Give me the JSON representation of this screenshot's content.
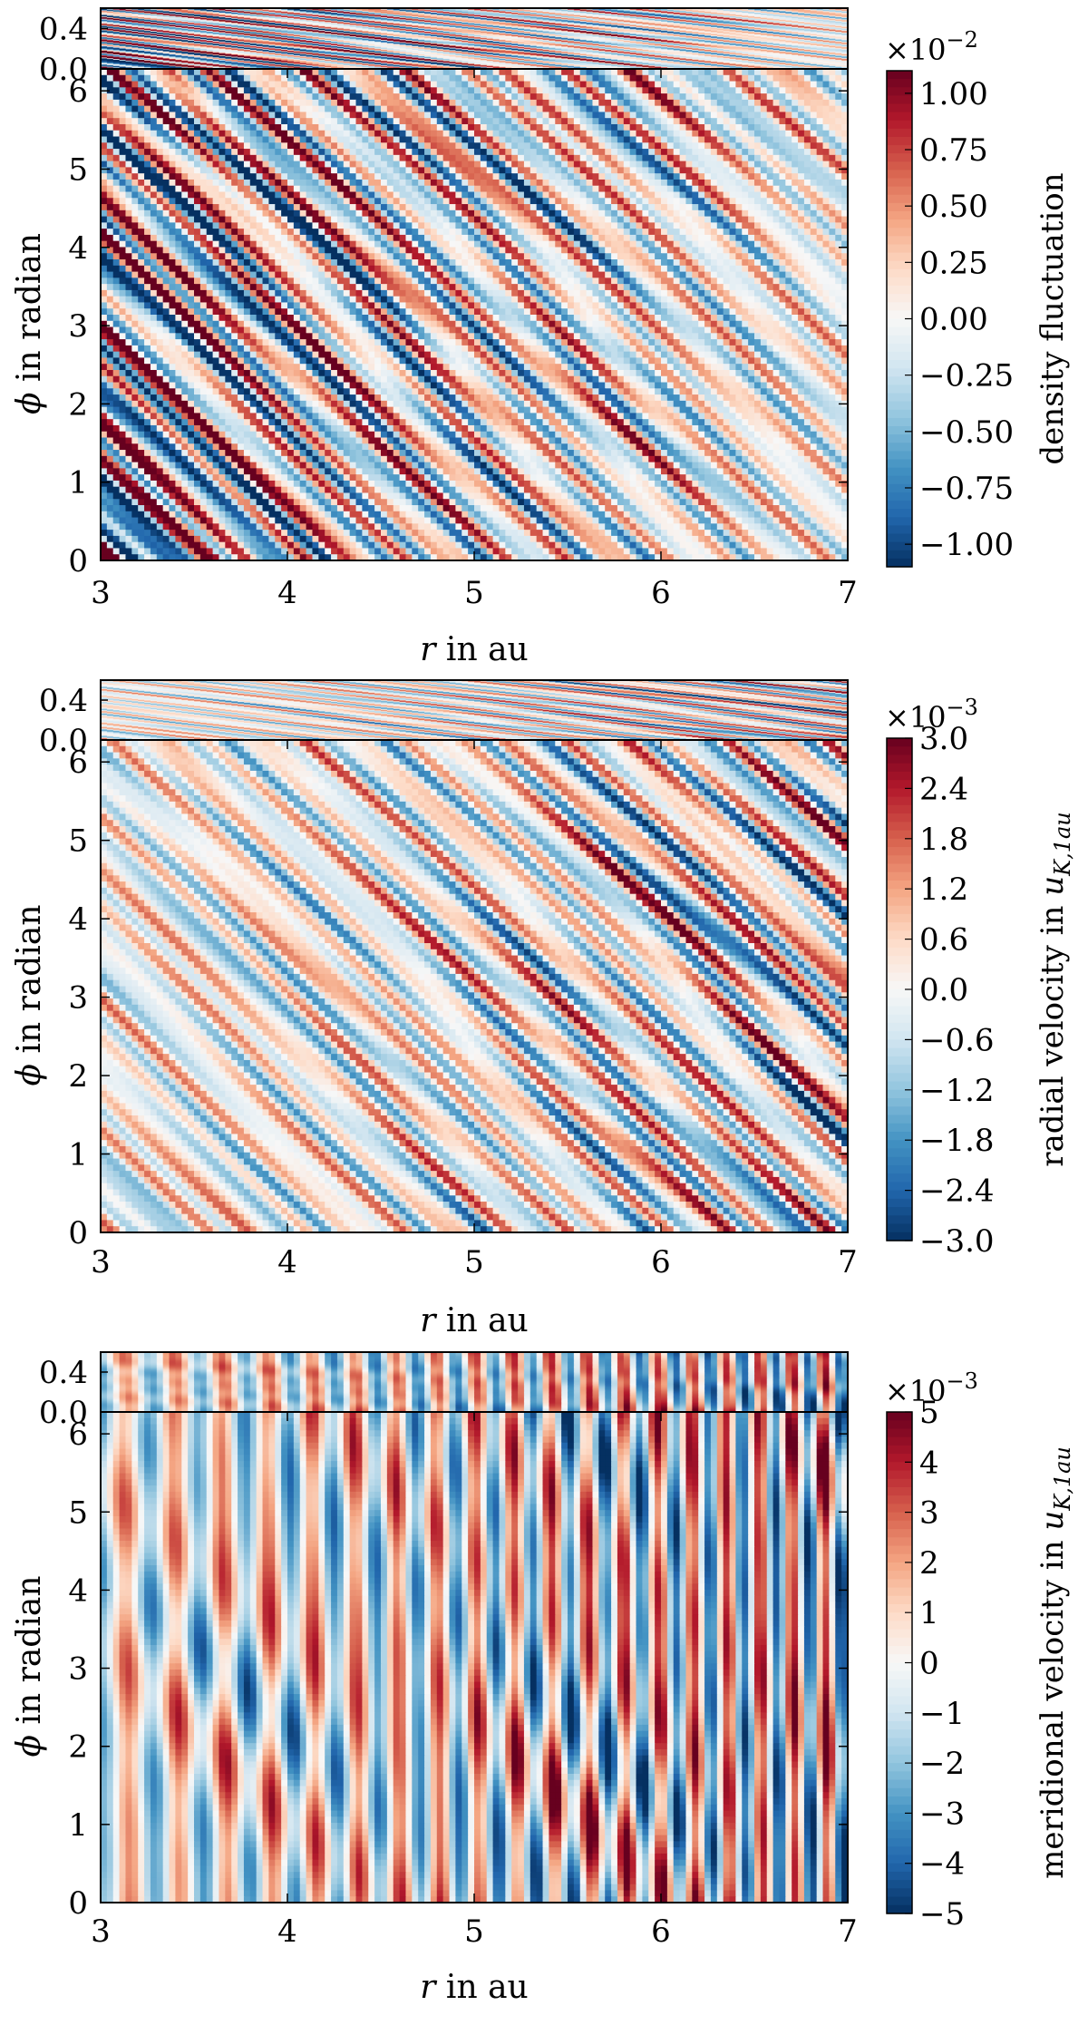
{
  "chart_data": [
    {
      "type": "heatmap",
      "title": "",
      "xlabel_var": "r",
      "xlabel_rest": " in au",
      "ylabel_var": "ϕ",
      "ylabel_rest": " in radian",
      "xlim": [
        3,
        7
      ],
      "x_ticks": [
        "3",
        "4",
        "5",
        "6",
        "7"
      ],
      "top_ylim": [
        0.0,
        0.6
      ],
      "top_y_ticks": [
        "0.0",
        "0.4"
      ],
      "main_ylim": [
        0,
        6.28
      ],
      "main_y_ticks": [
        "0",
        "1",
        "2",
        "3",
        "4",
        "5",
        "6"
      ],
      "colorbar": {
        "label": "density fluctuation",
        "label_sub": "",
        "multiplier_base": "×10",
        "multiplier_exp": "−2",
        "range": [
          -1.1,
          1.1
        ],
        "ticks": [
          "1.00",
          "0.75",
          "0.50",
          "0.25",
          "0.00",
          "−0.25",
          "−0.50",
          "−0.75",
          "−1.00"
        ],
        "tick_values": [
          1.0,
          0.75,
          0.5,
          0.25,
          0.0,
          -0.25,
          -0.5,
          -0.75,
          -1.0
        ]
      },
      "pattern": "diagonal"
    },
    {
      "type": "heatmap",
      "title": "",
      "xlabel_var": "r",
      "xlabel_rest": " in au",
      "ylabel_var": "ϕ",
      "ylabel_rest": " in radian",
      "xlim": [
        3,
        7
      ],
      "x_ticks": [
        "3",
        "4",
        "5",
        "6",
        "7"
      ],
      "top_ylim": [
        0.0,
        0.6
      ],
      "top_y_ticks": [
        "0.0",
        "0.4"
      ],
      "main_ylim": [
        0,
        6.28
      ],
      "main_y_ticks": [
        "0",
        "1",
        "2",
        "3",
        "4",
        "5",
        "6"
      ],
      "colorbar": {
        "label": "radial velocity in u",
        "label_sub": "K,1au",
        "multiplier_base": "×10",
        "multiplier_exp": "−3",
        "range": [
          -3.0,
          3.0
        ],
        "ticks": [
          "3.0",
          "2.4",
          "1.8",
          "1.2",
          "0.6",
          "0.0",
          "−0.6",
          "−1.2",
          "−1.8",
          "−2.4",
          "−3.0"
        ],
        "tick_values": [
          3.0,
          2.4,
          1.8,
          1.2,
          0.6,
          0.0,
          -0.6,
          -1.2,
          -1.8,
          -2.4,
          -3.0
        ]
      },
      "pattern": "diagonal-weak"
    },
    {
      "type": "heatmap",
      "title": "",
      "xlabel_var": "r",
      "xlabel_rest": " in au",
      "ylabel_var": "ϕ",
      "ylabel_rest": " in radian",
      "xlim": [
        3,
        7
      ],
      "x_ticks": [
        "3",
        "4",
        "5",
        "6",
        "7"
      ],
      "top_ylim": [
        0.0,
        0.6
      ],
      "top_y_ticks": [
        "0.0",
        "0.4"
      ],
      "main_ylim": [
        0,
        6.28
      ],
      "main_y_ticks": [
        "0",
        "1",
        "2",
        "3",
        "4",
        "5",
        "6"
      ],
      "colorbar": {
        "label": "meridional velocity in u",
        "label_sub": "K,1au",
        "multiplier_base": "×10",
        "multiplier_exp": "−3",
        "range": [
          -5,
          5
        ],
        "ticks": [
          "5",
          "4",
          "3",
          "2",
          "1",
          "0",
          "−1",
          "−2",
          "−3",
          "−4",
          "−5"
        ],
        "tick_values": [
          5,
          4,
          3,
          2,
          1,
          0,
          -1,
          -2,
          -3,
          -4,
          -5
        ]
      },
      "pattern": "vertical-bands"
    }
  ]
}
